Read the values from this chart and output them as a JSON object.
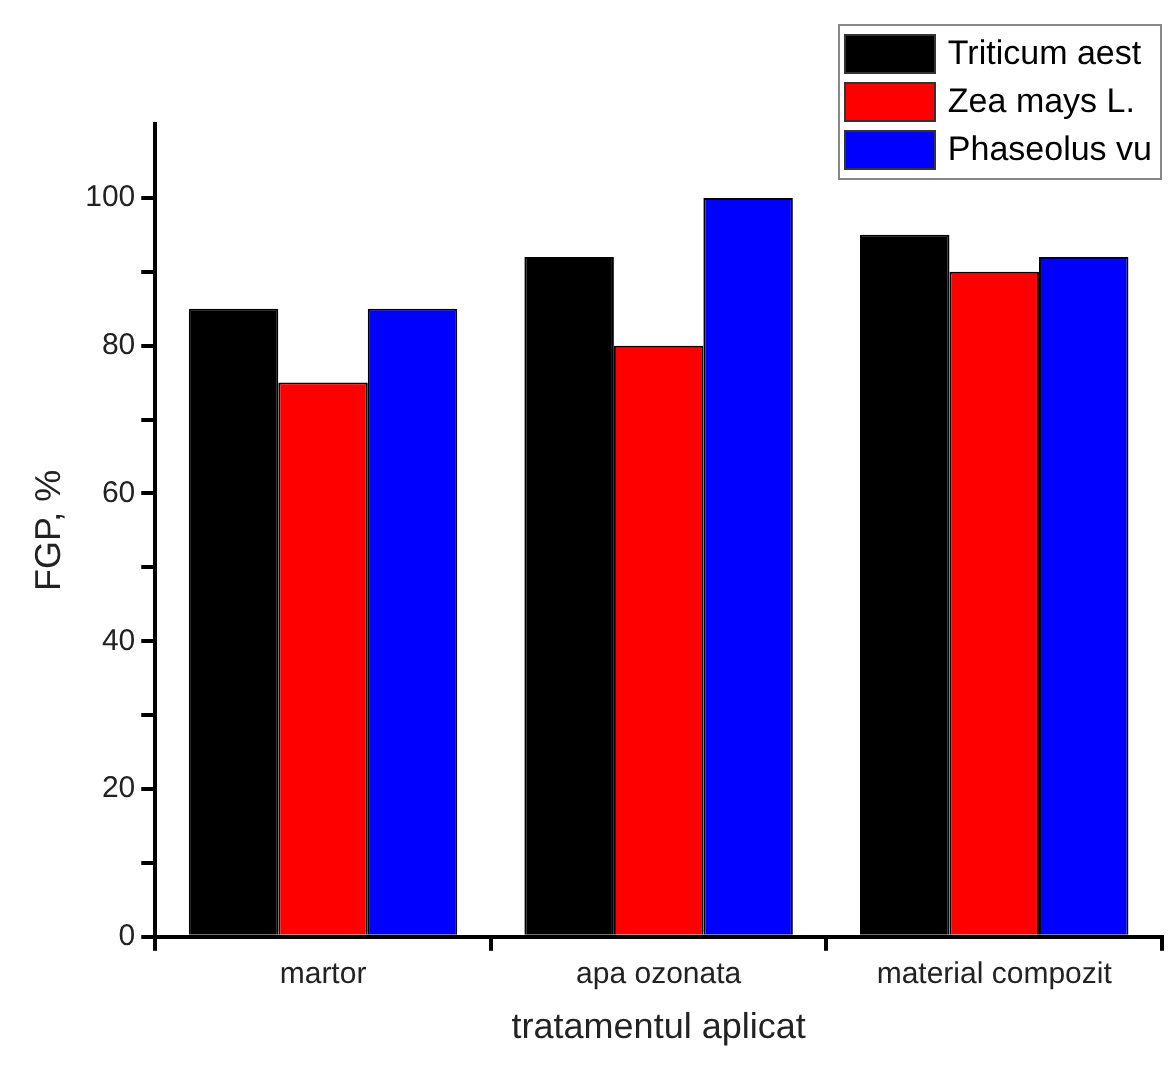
{
  "chart_data": {
    "type": "bar",
    "xlabel": "tratamentul aplicat",
    "ylabel": "FGP, %",
    "categories": [
      "martor",
      "apa ozonata",
      "material compozit"
    ],
    "series": [
      {
        "name": "Triticum  aest",
        "color": "#000000",
        "values": [
          85,
          92,
          95
        ]
      },
      {
        "name": "Zea mays L.",
        "color": "#ff0000",
        "values": [
          75,
          80,
          90
        ]
      },
      {
        "name": "Phaseolus vu",
        "color": "#0000ff",
        "values": [
          85,
          100,
          92
        ]
      }
    ],
    "ylim": [
      0,
      110
    ],
    "yticks": [
      0,
      {
        "value": 10,
        "label": null
      },
      20,
      {
        "value": 30,
        "label": null
      },
      40,
      {
        "value": 50,
        "label": null
      },
      60,
      {
        "value": 70,
        "label": null
      },
      80,
      {
        "value": 90,
        "label": null
      },
      100
    ],
    "grid": false,
    "legend": "top right"
  }
}
